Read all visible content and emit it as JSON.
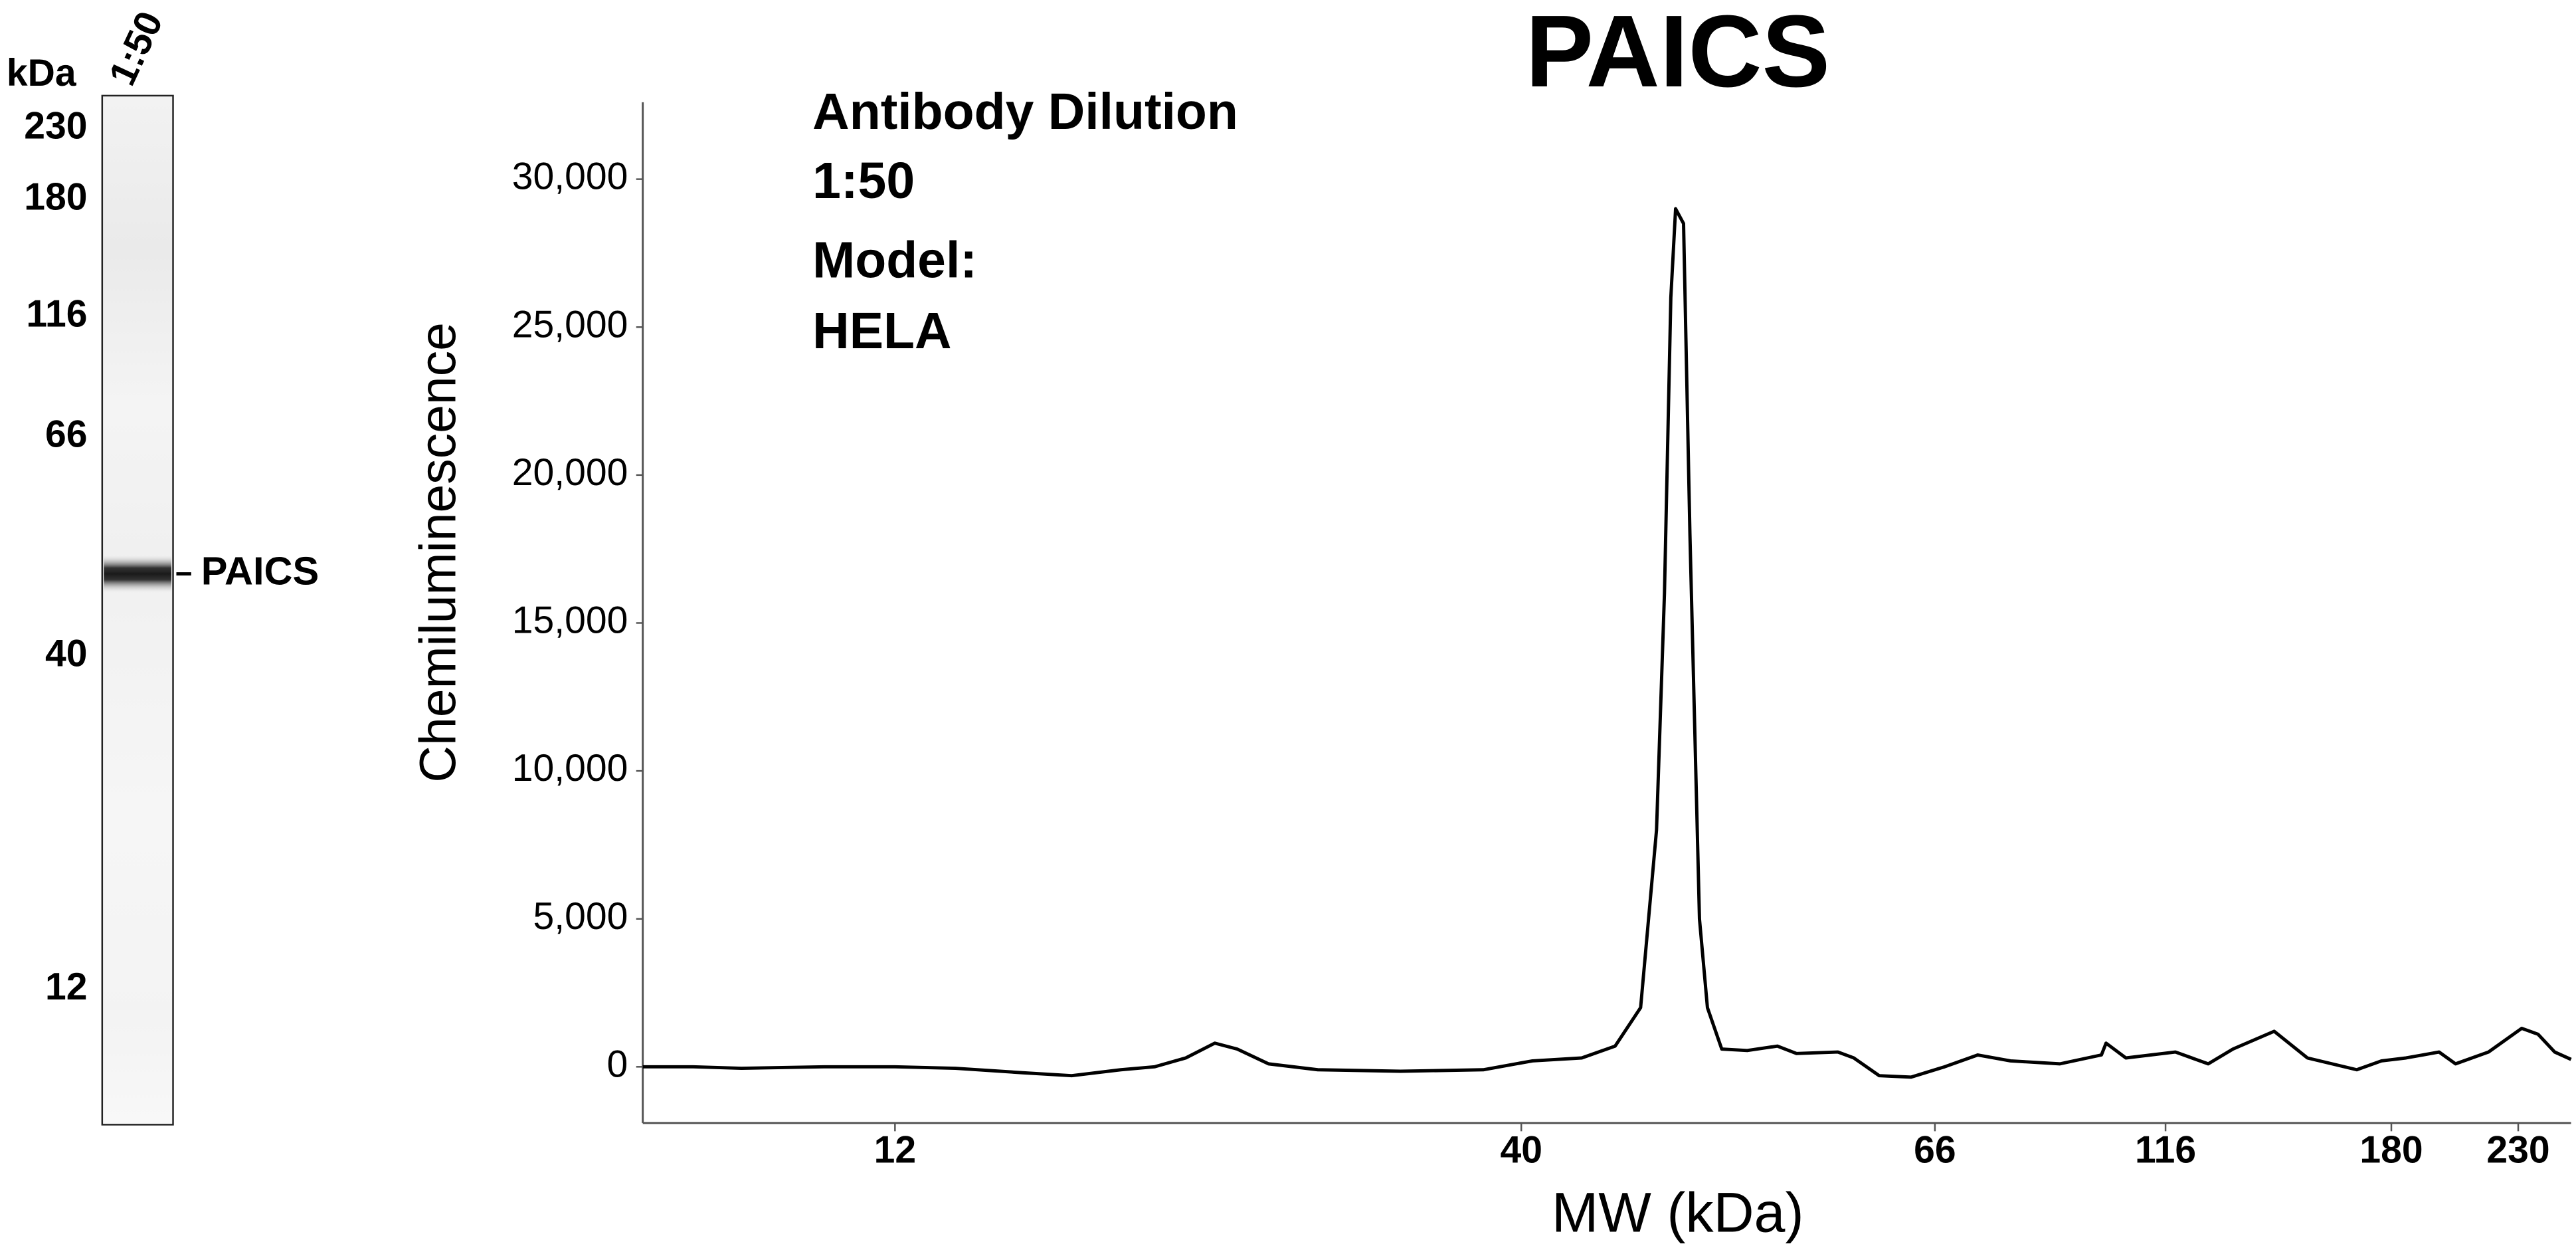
{
  "blot": {
    "unit": "kDa",
    "lane_label": "1:50",
    "markers": [
      "230",
      "180",
      "116",
      "66",
      "40",
      "12"
    ],
    "band_label": "PAICS"
  },
  "chart_data": {
    "type": "line",
    "title": "PAICS",
    "annotations": [
      "Antibody Dilution",
      "1:50",
      "Model:",
      "HELA"
    ],
    "xlabel": "MW (kDa)",
    "ylabel": "Chemiluminescence",
    "x": [
      1,
      3.2,
      5.3,
      8.9,
      12,
      14.7,
      17.7,
      19.9,
      22.1,
      23.6,
      25.0,
      26.3,
      27.3,
      28.7,
      30.9,
      34.6,
      38.3,
      40.7,
      43.8,
      45.9,
      47.5,
      48.5,
      49.0,
      49.4,
      49.7,
      50.2,
      50.6,
      51.2,
      51.7,
      52.6,
      54.2,
      56.1,
      57.3,
      59.9,
      60.9,
      62.5,
      64.5,
      68.1,
      75.3,
      82.4,
      93.1,
      102.1,
      103.1,
      107.4,
      118.8,
      128.1,
      135.1,
      146.8,
      156.2,
      170.2,
      177.2,
      185.8,
      192.3,
      198.8,
      205.3,
      218.3,
      231.3,
      237.5,
      243.8,
      250
    ],
    "series": [
      {
        "color": "#000000",
        "values": [
          0,
          0,
          -50,
          0,
          0,
          -50,
          -200,
          -300,
          -100,
          0,
          300,
          800,
          600,
          100,
          -100,
          -150,
          -100,
          200,
          300,
          700,
          2000,
          8000,
          16000,
          26000,
          29000,
          28500,
          18000,
          5000,
          2000,
          600,
          550,
          700,
          450,
          500,
          300,
          -300,
          -350,
          0,
          400,
          200,
          100,
          400,
          800,
          300,
          500,
          100,
          600,
          1200,
          300,
          -100,
          200,
          300,
          400,
          500,
          100,
          500,
          1300,
          1100,
          500,
          250
        ]
      }
    ],
    "xlim": [
      1,
      250
    ],
    "xticks": [
      12,
      40,
      66,
      116,
      180,
      230
    ],
    "ylim": [
      -1900,
      32600
    ],
    "yticks": [
      0,
      {
        "value": 5000,
        "label": "5,000"
      },
      {
        "value": 10000,
        "label": "10,000"
      },
      {
        "value": 15000,
        "label": "15,000"
      },
      {
        "value": 20000,
        "label": "20,000"
      },
      {
        "value": 25000,
        "label": "25,000"
      },
      {
        "value": 30000,
        "label": "30,000"
      }
    ]
  }
}
